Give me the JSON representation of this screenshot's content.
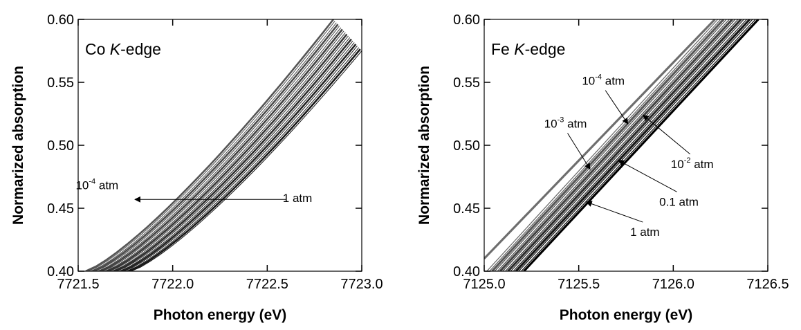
{
  "chart_data": [
    {
      "type": "line",
      "panel_label_prefix": "Co ",
      "panel_label_italic": "K",
      "panel_label_suffix": "-edge",
      "xlabel": "Photon energy (eV)",
      "ylabel": "Normarized absorption",
      "xlim": [
        7721.5,
        7723.0
      ],
      "ylim": [
        0.4,
        0.6
      ],
      "xticks": [
        7721.5,
        7722.0,
        7722.5,
        7723.0
      ],
      "xtick_labels": [
        "7721.5",
        "7722.0",
        "7722.5",
        "7723.0"
      ],
      "yticks": [
        0.4,
        0.45,
        0.5,
        0.55,
        0.6
      ],
      "ytick_labels": [
        "0.40",
        "0.45",
        "0.50",
        "0.55",
        "0.60"
      ],
      "grid": false,
      "series_count": 20,
      "series_x0": {
        "first": 7721.54,
        "last": 7721.78
      },
      "series_x1": {
        "first": 7722.85,
        "last": 7723.0
      },
      "series_y_end": {
        "first": 0.6,
        "last": 0.575
      },
      "annotations": [
        {
          "base": "10",
          "exp": "-4",
          "unit": " atm",
          "x": 7721.6,
          "y": 0.465
        },
        {
          "base": "1 atm",
          "exp": "",
          "unit": "",
          "x": 7722.66,
          "y": 0.455
        }
      ],
      "arrow": {
        "from": [
          7722.6,
          0.457
        ],
        "to": [
          7721.8,
          0.457
        ]
      }
    },
    {
      "type": "line",
      "panel_label_prefix": "Fe ",
      "panel_label_italic": "K",
      "panel_label_suffix": "-edge",
      "xlabel": "Photon energy (eV)",
      "ylabel": "Normarized absorption",
      "xlim": [
        7125.0,
        7126.5
      ],
      "ylim": [
        0.4,
        0.6
      ],
      "xticks": [
        7125.0,
        7125.5,
        7126.0,
        7126.5
      ],
      "xtick_labels": [
        "7125.0",
        "7125.5",
        "7126.0",
        "7126.5"
      ],
      "yticks": [
        0.4,
        0.45,
        0.5,
        0.55,
        0.6
      ],
      "ytick_labels": [
        "0.40",
        "0.45",
        "0.50",
        "0.55",
        "0.60"
      ],
      "grid": false,
      "series_count": 16,
      "series_x_start": {
        "first": 7125.0,
        "last": 7125.21
      },
      "series_x_end": {
        "first": 7126.22,
        "last": 7126.45
      },
      "annotations": [
        {
          "base": "10",
          "exp": "-4",
          "unit": " atm",
          "x": 7125.63,
          "y": 0.548,
          "arrow_to": [
            7125.76,
            0.517
          ]
        },
        {
          "base": "10",
          "exp": "-3",
          "unit": " atm",
          "x": 7125.43,
          "y": 0.514,
          "arrow_to": [
            7125.56,
            0.481
          ]
        },
        {
          "base": "10",
          "exp": "-2",
          "unit": " atm",
          "x": 7126.1,
          "y": 0.482,
          "arrow_to": [
            7125.84,
            0.524
          ]
        },
        {
          "base": "0.1 atm",
          "exp": "",
          "unit": "",
          "x": 7126.03,
          "y": 0.452,
          "arrow_to": [
            7125.71,
            0.488
          ]
        },
        {
          "base": "1 atm",
          "exp": "",
          "unit": "",
          "x": 7125.85,
          "y": 0.428,
          "arrow_to": [
            7125.54,
            0.455
          ]
        }
      ]
    }
  ]
}
